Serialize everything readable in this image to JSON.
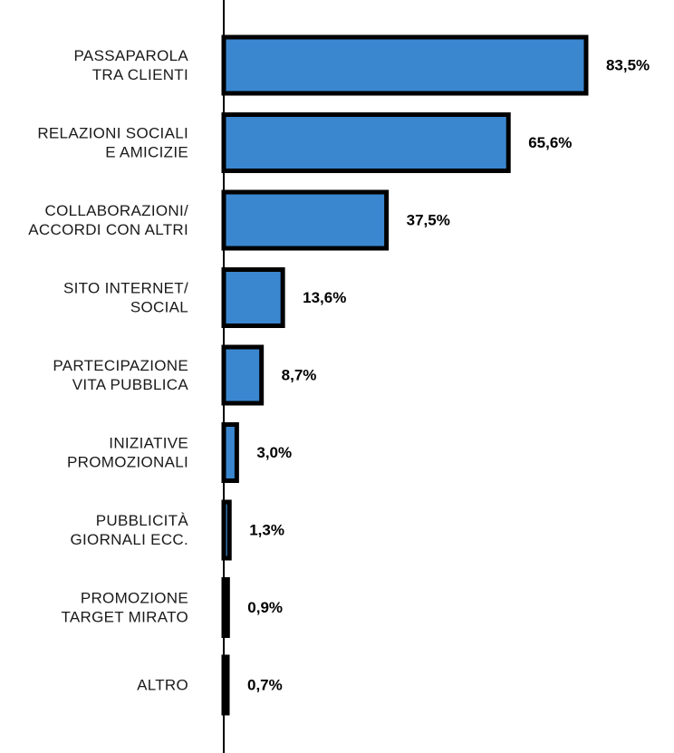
{
  "chart_data": {
    "type": "bar",
    "orientation": "horizontal",
    "categories": [
      [
        "PASSAPAROLA",
        "TRA CLIENTI"
      ],
      [
        "RELAZIONI SOCIALI",
        "E AMICIZIE"
      ],
      [
        "COLLABORAZIONI/",
        "ACCORDI CON ALTRI"
      ],
      [
        "SITO INTERNET/",
        "SOCIAL"
      ],
      [
        "PARTECIPAZIONE",
        "VITA PUBBLICA"
      ],
      [
        "INIZIATIVE",
        "PROMOZIONALI"
      ],
      [
        "PUBBLICITÀ",
        "GIORNALI ECC."
      ],
      [
        "PROMOZIONE",
        "TARGET MIRATO"
      ],
      [
        "ALTRO"
      ]
    ],
    "values": [
      83.5,
      65.6,
      37.5,
      13.6,
      8.7,
      3.0,
      1.3,
      0.9,
      0.7
    ],
    "value_labels": [
      "83,5%",
      "65,6%",
      "37,5%",
      "13,6%",
      "8,7%",
      "3,0%",
      "1,3%",
      "0,9%",
      "0,7%"
    ],
    "title": "",
    "xlabel": "",
    "ylabel": "",
    "xlim": [
      0,
      100
    ],
    "grid": false,
    "legend": "none",
    "colors": {
      "bar_fill": "#3a87d0",
      "bar_stroke": "#000000",
      "axis": "#000000"
    }
  }
}
